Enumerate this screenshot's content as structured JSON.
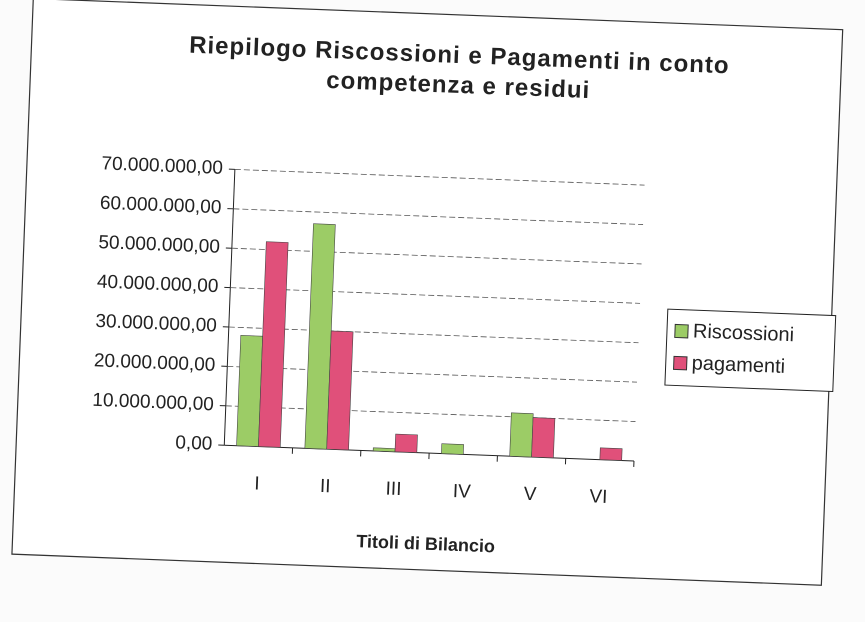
{
  "chart_data": {
    "type": "bar",
    "title": "Riepilogo Riscossioni e Pagamenti in conto competenza e residui",
    "x_label": "Titoli di Bilancio",
    "categories": [
      "I",
      "II",
      "III",
      "IV",
      "V",
      "VI"
    ],
    "series": [
      {
        "name": "Riscossioni",
        "color": "#9ccc66",
        "values": [
          28000000,
          57000000,
          800000,
          2500000,
          11000000,
          0
        ]
      },
      {
        "name": "pagamenti",
        "color": "#e0507a",
        "values": [
          52000000,
          30000000,
          4500000,
          0,
          10000000,
          3000000
        ]
      }
    ],
    "ylim": [
      0,
      70000000
    ],
    "yticks": [
      {
        "value": 0,
        "label": "0,00"
      },
      {
        "value": 10000000,
        "label": "10.000.000,00"
      },
      {
        "value": 20000000,
        "label": "20.000.000,00"
      },
      {
        "value": 30000000,
        "label": "30.000.000,00"
      },
      {
        "value": 40000000,
        "label": "40.000.000,00"
      },
      {
        "value": 50000000,
        "label": "50.000.000,00"
      },
      {
        "value": 60000000,
        "label": "60.000.000,00"
      },
      {
        "value": 70000000,
        "label": "70.000.000,00"
      }
    ],
    "grid": true,
    "legend": "right"
  }
}
